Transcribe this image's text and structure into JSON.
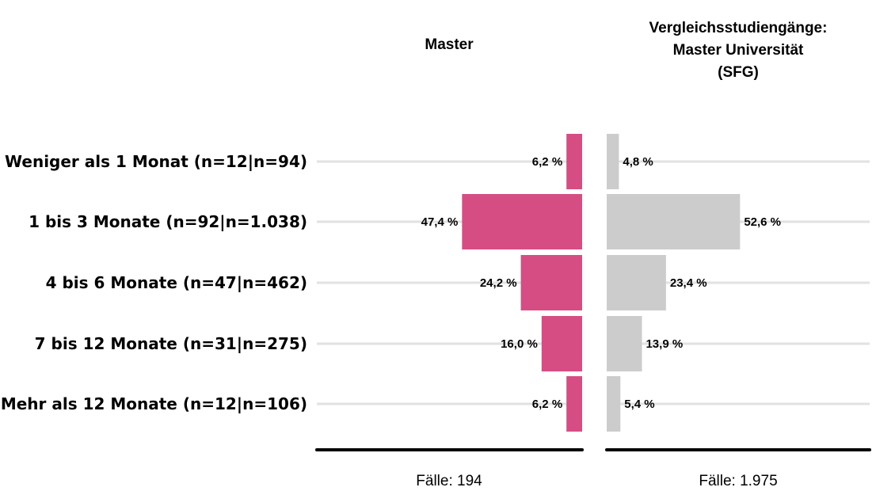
{
  "chart_data": {
    "type": "bar",
    "orientation": "horizontal-mirrored",
    "categories": [
      "Weniger als 1 Monat (n=12|n=94)",
      "1 bis 3 Monate (n=92|n=1.038)",
      "4 bis 6 Monate (n=47|n=462)",
      "7 bis 12 Monate (n=31|n=275)",
      "Mehr als 12 Monate (n=12|n=106)"
    ],
    "series": [
      {
        "title_lines": [
          "Master"
        ],
        "values": [
          6.2,
          47.4,
          24.2,
          16.0,
          6.2
        ],
        "value_labels": [
          "6,2 %",
          "47,4 %",
          "24,2 %",
          "16,0 %",
          "6,2 %"
        ],
        "cases_label": "Fälle: 194",
        "color": "#d64d84",
        "direction": "left"
      },
      {
        "title_lines": [
          "Vergleichsstudiengänge:",
          "Master Universität",
          "(SFG)"
        ],
        "values": [
          4.8,
          52.6,
          23.4,
          13.9,
          5.4
        ],
        "value_labels": [
          "4,8 %",
          "52,6 %",
          "23,4 %",
          "13,9 %",
          "5,4 %"
        ],
        "cases_label": "Fälle: 1.975",
        "color": "#cccccc",
        "direction": "right"
      }
    ],
    "grid": true,
    "grid_color": "#e2e2e2",
    "axis_line_color": "#000000"
  }
}
